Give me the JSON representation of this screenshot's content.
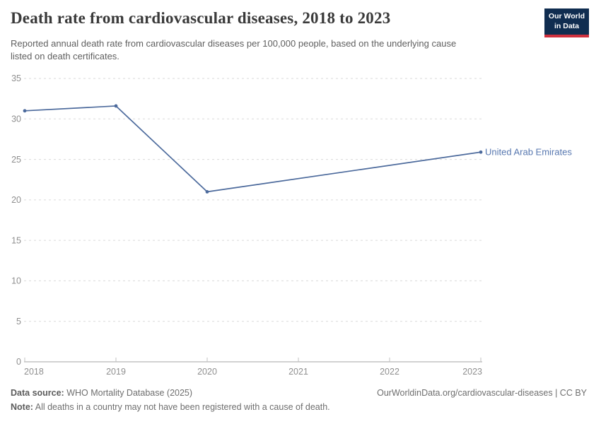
{
  "header": {
    "subtitle_lines": [
      "Reported annual death rate from cardiovascular diseases per 100,000 people, based on the underlying cause",
      "listed on death certificates."
    ],
    "logo": {
      "line1": "Our World",
      "line2": "in Data",
      "bg_color": "#102d50",
      "accent_color": "#cf303e"
    }
  },
  "chart_data": {
    "type": "line",
    "title": "Death rate from cardiovascular diseases, 2018 to 2023",
    "xlabel": "",
    "ylabel": "",
    "xlim": [
      2018,
      2023
    ],
    "ylim": [
      0,
      35
    ],
    "x_ticks": [
      2018,
      2019,
      2020,
      2021,
      2022,
      2023
    ],
    "y_ticks": [
      0,
      5,
      10,
      15,
      20,
      25,
      30,
      35
    ],
    "grid": "horizontal-dashed",
    "legend_position": "end-of-line-label",
    "series": [
      {
        "name": "United Arab Emirates",
        "color": "#4c6a9c",
        "label_color": "#5878b0",
        "points": [
          {
            "x": 2018,
            "y": 31.0
          },
          {
            "x": 2019,
            "y": 31.6
          },
          {
            "x": 2020,
            "y": 21.0
          },
          {
            "x": 2023,
            "y": 25.9
          }
        ],
        "note": "no markers for 2021 and 2022; straight interpolated segment 2020 to 2023"
      }
    ],
    "colors": {
      "gridline": "#dadada",
      "axis": "#a6a6a6",
      "tick": "#c0c0c0",
      "tick_label": "#8f8f8f"
    }
  },
  "footer": {
    "datasource_label": "Data source:",
    "datasource_value": " WHO Mortality Database (2025)",
    "note_label": "Note:",
    "note_value": " All deaths in a country may not have been registered with a cause of death.",
    "link": "OurWorldinData.org/cardiovascular-diseases | CC BY"
  }
}
